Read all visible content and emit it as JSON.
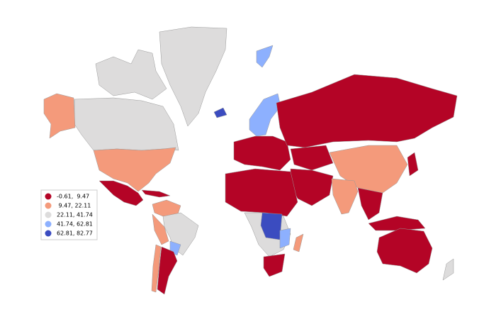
{
  "legend": {
    "items": [
      {
        "label": "-0.61,  9.47",
        "color": "#b40426"
      },
      {
        "label": " 9.47, 22.11",
        "color": "#f49a7b"
      },
      {
        "label": "22.11, 41.74",
        "color": "#dddcdc"
      },
      {
        "label": "41.74, 62.81",
        "color": "#8db0fe"
      },
      {
        "label": "62.81, 82.77",
        "color": "#3b4cc0"
      }
    ]
  }
}
